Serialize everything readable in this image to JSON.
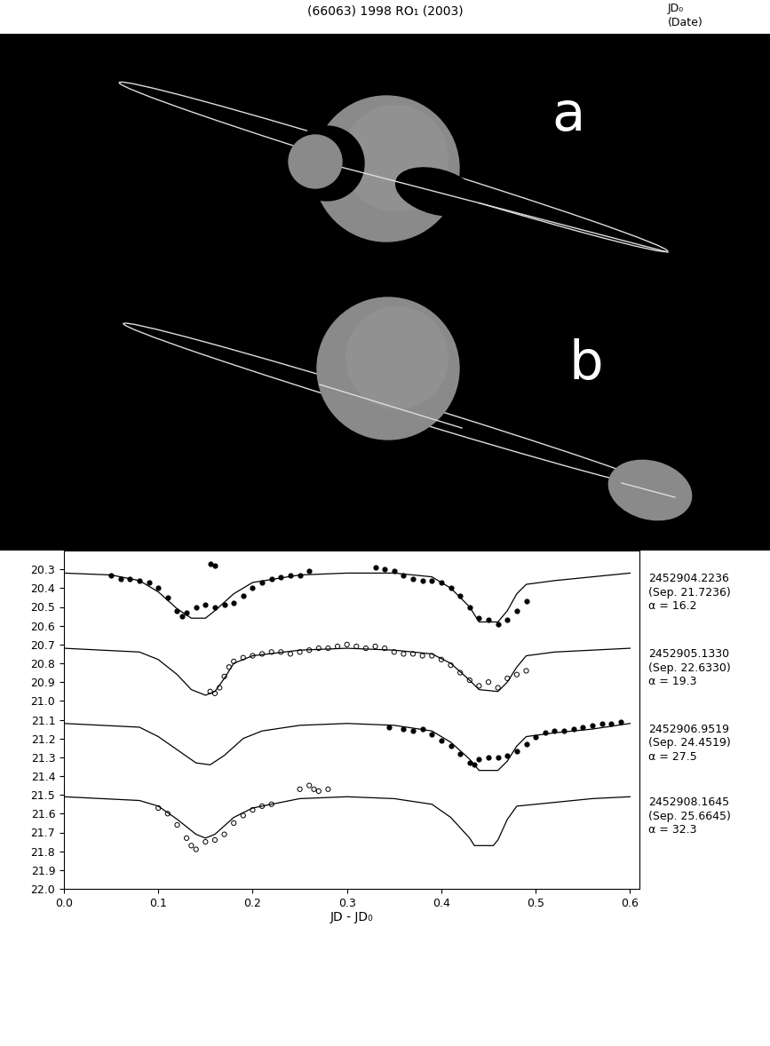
{
  "header": {
    "title": "(66063) 1998 RO₁ (2003)",
    "jd_header": "JD₀",
    "date_header": "(Date)"
  },
  "model_panels": [
    {
      "label": "a"
    },
    {
      "label": "b"
    }
  ],
  "chart_data": {
    "type": "line",
    "x_label": "JD - JD₀",
    "xlim": [
      0.0,
      0.61
    ],
    "xticks": [
      0.0,
      0.1,
      0.2,
      0.3,
      0.4,
      0.5,
      0.6
    ],
    "ylim": [
      22.0,
      20.2
    ],
    "yticks": [
      20.3,
      20.4,
      20.5,
      20.6,
      20.7,
      20.8,
      20.9,
      21.0,
      21.1,
      21.2,
      21.3,
      21.4,
      21.5,
      21.6,
      21.7,
      21.8,
      21.9,
      22.0
    ],
    "nights": [
      {
        "jd0": "2452904.2236",
        "date": "(Sep. 21.7236)",
        "alpha": "α = 16.2",
        "model": {
          "color": "black",
          "line_style": "solid",
          "x": [
            0.0,
            0.05,
            0.08,
            0.1,
            0.12,
            0.135,
            0.15,
            0.16,
            0.18,
            0.2,
            0.25,
            0.3,
            0.35,
            0.39,
            0.41,
            0.43,
            0.44,
            0.46,
            0.47,
            0.48,
            0.49,
            0.52,
            0.56,
            0.6
          ],
          "values": [
            20.32,
            20.33,
            20.36,
            20.42,
            20.51,
            20.56,
            20.56,
            20.52,
            20.43,
            20.37,
            20.33,
            20.32,
            20.32,
            20.34,
            20.4,
            20.5,
            20.58,
            20.58,
            20.52,
            20.43,
            20.38,
            20.36,
            20.34,
            20.32
          ]
        },
        "observed": {
          "color": "black",
          "marker": "circle",
          "x": [
            0.05,
            0.06,
            0.07,
            0.08,
            0.09,
            0.1,
            0.11,
            0.12,
            0.125,
            0.13,
            0.14,
            0.15,
            0.16,
            0.17,
            0.18,
            0.19,
            0.2,
            0.21,
            0.22,
            0.23,
            0.24,
            0.25,
            0.26,
            0.155,
            0.16,
            0.33,
            0.34,
            0.35,
            0.36,
            0.37,
            0.38,
            0.39,
            0.4,
            0.41,
            0.42,
            0.43,
            0.44,
            0.45,
            0.46,
            0.47,
            0.48,
            0.49
          ],
          "values": [
            20.33,
            20.35,
            20.35,
            20.36,
            20.37,
            20.4,
            20.45,
            20.52,
            20.55,
            20.53,
            20.5,
            20.49,
            20.5,
            20.49,
            20.48,
            20.44,
            20.4,
            20.37,
            20.35,
            20.34,
            20.33,
            20.33,
            20.31,
            20.27,
            20.28,
            20.29,
            20.3,
            20.31,
            20.33,
            20.35,
            20.36,
            20.36,
            20.37,
            20.4,
            20.44,
            20.5,
            20.56,
            20.57,
            20.59,
            20.57,
            20.52,
            20.47
          ]
        }
      },
      {
        "jd0": "2452905.1330",
        "date": "(Sep. 22.6330)",
        "alpha": "α = 19.3",
        "model": {
          "color": "black",
          "line_style": "solid",
          "x": [
            0.0,
            0.08,
            0.1,
            0.12,
            0.135,
            0.15,
            0.16,
            0.17,
            0.18,
            0.2,
            0.25,
            0.3,
            0.35,
            0.39,
            0.41,
            0.43,
            0.44,
            0.46,
            0.47,
            0.48,
            0.49,
            0.52,
            0.56,
            0.6
          ],
          "values": [
            20.72,
            20.74,
            20.78,
            20.86,
            20.94,
            20.97,
            20.95,
            20.88,
            20.8,
            20.76,
            20.73,
            20.72,
            20.73,
            20.75,
            20.8,
            20.89,
            20.94,
            20.95,
            20.9,
            20.82,
            20.76,
            20.74,
            20.73,
            20.72
          ]
        },
        "observed": {
          "color": "black",
          "marker": "open_circle",
          "x": [
            0.155,
            0.16,
            0.165,
            0.17,
            0.175,
            0.18,
            0.19,
            0.2,
            0.21,
            0.22,
            0.23,
            0.24,
            0.25,
            0.26,
            0.27,
            0.28,
            0.29,
            0.3,
            0.31,
            0.32,
            0.33,
            0.34,
            0.35,
            0.36,
            0.37,
            0.38,
            0.39,
            0.4,
            0.41,
            0.42,
            0.43,
            0.44,
            0.45,
            0.46,
            0.47,
            0.48,
            0.49
          ],
          "values": [
            20.95,
            20.96,
            20.93,
            20.87,
            20.82,
            20.79,
            20.77,
            20.76,
            20.75,
            20.74,
            20.74,
            20.75,
            20.74,
            20.73,
            20.72,
            20.72,
            20.71,
            20.7,
            20.71,
            20.72,
            20.71,
            20.72,
            20.74,
            20.75,
            20.75,
            20.76,
            20.76,
            20.78,
            20.81,
            20.85,
            20.89,
            20.92,
            20.9,
            20.93,
            20.88,
            20.86,
            20.84
          ]
        }
      },
      {
        "jd0": "2452906.9519",
        "date": "(Sep. 24.4519)",
        "alpha": "α = 27.5",
        "model": {
          "color": "black",
          "line_style": "solid",
          "x": [
            0.0,
            0.08,
            0.1,
            0.12,
            0.14,
            0.155,
            0.17,
            0.19,
            0.21,
            0.25,
            0.3,
            0.35,
            0.39,
            0.41,
            0.43,
            0.44,
            0.46,
            0.47,
            0.48,
            0.49,
            0.52,
            0.56,
            0.6
          ],
          "values": [
            21.12,
            21.14,
            21.19,
            21.26,
            21.33,
            21.34,
            21.29,
            21.2,
            21.16,
            21.13,
            21.12,
            21.13,
            21.16,
            21.22,
            21.31,
            21.37,
            21.37,
            21.32,
            21.24,
            21.19,
            21.17,
            21.15,
            21.12
          ]
        },
        "observed": {
          "color": "black",
          "marker": "circle",
          "x": [
            0.345,
            0.36,
            0.37,
            0.38,
            0.39,
            0.4,
            0.41,
            0.42,
            0.43,
            0.435,
            0.44,
            0.45,
            0.46,
            0.47,
            0.48,
            0.49,
            0.5,
            0.51,
            0.52,
            0.53,
            0.54,
            0.55,
            0.56,
            0.57,
            0.58,
            0.59
          ],
          "values": [
            21.14,
            21.15,
            21.16,
            21.15,
            21.18,
            21.21,
            21.24,
            21.28,
            21.33,
            21.34,
            21.31,
            21.3,
            21.3,
            21.29,
            21.27,
            21.23,
            21.19,
            21.17,
            21.16,
            21.16,
            21.15,
            21.14,
            21.13,
            21.12,
            21.12,
            21.11
          ]
        }
      },
      {
        "jd0": "2452908.1645",
        "date": "(Sep. 25.6645)",
        "alpha": "α = 32.3",
        "model": {
          "color": "black",
          "line_style": "solid",
          "x": [
            0.0,
            0.08,
            0.1,
            0.12,
            0.14,
            0.15,
            0.16,
            0.18,
            0.2,
            0.25,
            0.3,
            0.35,
            0.39,
            0.41,
            0.43,
            0.435,
            0.455,
            0.46,
            0.47,
            0.48,
            0.52,
            0.56,
            0.6
          ],
          "values": [
            21.51,
            21.53,
            21.56,
            21.63,
            21.71,
            21.73,
            21.71,
            21.62,
            21.57,
            21.52,
            21.51,
            21.52,
            21.55,
            21.62,
            21.73,
            21.77,
            21.77,
            21.74,
            21.63,
            21.56,
            21.54,
            21.52,
            21.51
          ]
        },
        "observed": {
          "color": "black",
          "marker": "open_circle",
          "x": [
            0.1,
            0.11,
            0.12,
            0.13,
            0.135,
            0.14,
            0.15,
            0.16,
            0.17,
            0.18,
            0.19,
            0.2,
            0.21,
            0.22,
            0.25,
            0.26,
            0.265,
            0.27,
            0.28
          ],
          "values": [
            21.57,
            21.6,
            21.66,
            21.73,
            21.77,
            21.79,
            21.75,
            21.74,
            21.71,
            21.65,
            21.61,
            21.58,
            21.56,
            21.55,
            21.47,
            21.45,
            21.47,
            21.48,
            21.47
          ]
        }
      }
    ]
  }
}
